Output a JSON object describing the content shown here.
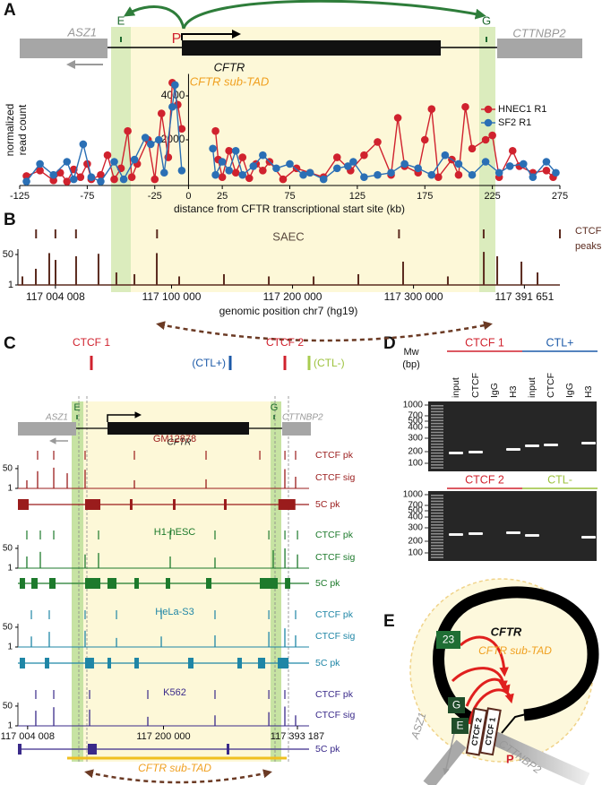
{
  "panel_labels": [
    "A",
    "B",
    "C",
    "D",
    "E"
  ],
  "gene_map": {
    "left_gene": "ASZ1",
    "right_gene": "CTTNBP2",
    "enhancer_e": "E",
    "enhancer_g": "G",
    "promoter": "P",
    "gene": "CFTR",
    "subtad": "CFTR sub-TAD"
  },
  "chart_data": [
    {
      "type": "line",
      "xlabel": "distance from CFTR transcriptional start site (kb)",
      "ylabel": [
        "normalized",
        "read count"
      ],
      "xlim": [
        -125,
        275
      ],
      "xticks": [
        -125,
        -75,
        -25,
        0,
        25,
        75,
        125,
        175,
        225,
        275
      ],
      "ylim": [
        0,
        5000
      ],
      "yticks": [
        2000,
        4000
      ],
      "legend": "upper right",
      "series": [
        {
          "name": "HNEC1 R1",
          "color": "#d0222e",
          "x": [
            -120,
            -110,
            -100,
            -95,
            -90,
            -85,
            -80,
            -75,
            -72,
            -65,
            -60,
            -55,
            -50,
            -45,
            -42,
            -38,
            -30,
            -25,
            -20,
            -15,
            -12,
            -8,
            -5,
            0,
            20,
            22,
            25,
            30,
            35,
            40,
            45,
            50,
            55,
            60,
            70,
            80,
            90,
            100,
            110,
            120,
            130,
            140,
            150,
            155,
            160,
            170,
            175,
            180,
            185,
            195,
            200,
            205,
            210,
            220,
            225,
            230,
            240,
            245,
            255,
            265,
            270
          ],
          "values": [
            350,
            600,
            150,
            500,
            100,
            650,
            300,
            900,
            200,
            400,
            1300,
            200,
            700,
            2400,
            300,
            900,
            2000,
            200,
            3200,
            1200,
            4600,
            3600,
            2500,
            null,
            2400,
            1100,
            300,
            1500,
            500,
            1200,
            250,
            900,
            600,
            1000,
            200,
            700,
            500,
            300,
            1200,
            600,
            1300,
            1900,
            400,
            3000,
            800,
            500,
            2000,
            3400,
            300,
            1100,
            400,
            3500,
            1600,
            2000,
            2200,
            300,
            1500,
            800,
            500,
            600,
            300
          ]
        },
        {
          "name": "SF2 R1",
          "color": "#2a6fb5",
          "x": [
            -120,
            -110,
            -100,
            -90,
            -85,
            -78,
            -72,
            -65,
            -55,
            -48,
            -40,
            -32,
            -28,
            -22,
            -18,
            -12,
            -10,
            -5,
            0,
            18,
            20,
            25,
            30,
            35,
            40,
            48,
            55,
            65,
            75,
            85,
            90,
            100,
            110,
            118,
            122,
            130,
            140,
            150,
            160,
            170,
            180,
            190,
            200,
            210,
            220,
            230,
            238,
            248,
            255,
            265,
            272
          ],
          "values": [
            100,
            900,
            400,
            1000,
            200,
            1800,
            300,
            100,
            1000,
            200,
            1100,
            2100,
            1800,
            2000,
            500,
            3500,
            4500,
            600,
            null,
            1600,
            400,
            1000,
            600,
            1500,
            400,
            800,
            1300,
            700,
            900,
            400,
            500,
            200,
            700,
            800,
            1000,
            300,
            400,
            500,
            900,
            700,
            400,
            1300,
            900,
            400,
            1000,
            500,
            800,
            900,
            300,
            1000,
            500
          ]
        }
      ]
    },
    {
      "type": "bar",
      "label": "SAEC",
      "peaks_label": [
        "CTCF",
        "peaks"
      ],
      "color": "#5a2a1e",
      "xlabel": "genomic position chr7 (hg19)",
      "xlim": [
        116973000,
        117421000
      ],
      "xticks": [
        {
          "value": 117004008,
          "label": "117 004 008"
        },
        {
          "value": 117100000,
          "label": "117 100 000"
        },
        {
          "value": 117200000,
          "label": "117 200 000"
        },
        {
          "value": 117300000,
          "label": "117 300 000"
        },
        {
          "value": 117391651,
          "label": "117 391 651"
        }
      ],
      "ylim": [
        1,
        100
      ],
      "yticks": [
        1,
        50
      ],
      "log_scale": true,
      "peaks": [
        116988000,
        117004000,
        117021000,
        117088000,
        117288000,
        117358000
      ],
      "x": [
        116976700,
        116987800,
        116998900,
        117004100,
        117021100,
        117039600,
        117054400,
        117069300,
        117087800,
        117106300,
        117143300,
        117180400,
        117217400,
        117254400,
        117291400,
        117328400,
        117358100,
        117369200,
        117389200,
        117402500
      ],
      "values": [
        3,
        8,
        60,
        25,
        40,
        55,
        5,
        4,
        60,
        3,
        4,
        3,
        3,
        4,
        20,
        3,
        70,
        40,
        20,
        5
      ]
    }
  ],
  "panel_c": {
    "ctcf1": "CTCF 1",
    "ctcf2": "CTCF 2",
    "ctl_pos": "(CTL+)",
    "ctl_neg": "(CTL-)",
    "track_labels": {
      "pk": "CTCF pk",
      "sig": "CTCF sig",
      "fivec": "5C pk"
    },
    "xlim": [
      116990000,
      117410000
    ],
    "xticks": [
      {
        "value": 117004008,
        "label": "117 004 008"
      },
      {
        "value": 117200000,
        "label": "117 200 000"
      },
      {
        "value": 117393187,
        "label": "117 393 187"
      }
    ],
    "ylim": [
      1,
      100
    ],
    "yticks": [
      1,
      50
    ],
    "log_scale": true,
    "cell_lines": [
      {
        "name": "GM12878",
        "color": "#9a1c1c",
        "pk": [
          117018400,
          117041700,
          117086900,
          117158000,
          117261400,
          117339000,
          117375200,
          117390600
        ],
        "sig_x": [
          117002900,
          117018400,
          117041700,
          117061100,
          117086900,
          117158000,
          117261400,
          117375100,
          117390600
        ],
        "sig": [
          5,
          30,
          60,
          20,
          40,
          5,
          6,
          45,
          10
        ],
        "fivec": [
          [
            116990000,
            117005500
          ],
          [
            117086900,
            117108900
          ],
          [
            117151500,
            117155300
          ],
          [
            117213600,
            117217400
          ],
          [
            117287200,
            117291100
          ],
          [
            117365700,
            117390300
          ]
        ]
      },
      {
        "name": "H1-hESC",
        "color": "#1d7a2c",
        "pk": [
          117002900,
          117022300,
          117041700,
          117106300,
          117209700,
          117274300,
          117352000,
          117375200,
          117393300
        ],
        "sig_x": [
          117002900,
          117022300,
          117086900,
          117106300,
          117209700,
          117274300,
          117358300,
          117375200,
          117393300
        ],
        "sig": [
          10,
          25,
          15,
          20,
          10,
          8,
          35,
          50,
          15
        ],
        "fivec": [
          [
            116992600,
            117000300
          ],
          [
            117009400,
            117018400
          ],
          [
            117035200,
            117044300
          ],
          [
            117086900,
            117108900
          ],
          [
            117119200,
            117132200
          ],
          [
            117158000,
            117164500
          ],
          [
            117203200,
            117209700
          ],
          [
            117261400,
            117269200
          ],
          [
            117338900,
            117364800
          ],
          [
            117375200,
            117382900
          ]
        ]
      },
      {
        "name": "HeLa-S3",
        "color": "#1f86a6",
        "pk": [
          117009400,
          117035200,
          117086900,
          117132200,
          117196800,
          117274300,
          117352000,
          117390600
        ],
        "sig_x": [
          117009400,
          117035200,
          117086900,
          117132200,
          117196800,
          117274300,
          117352000,
          117375100,
          117390600
        ],
        "sig": [
          8,
          20,
          25,
          6,
          8,
          10,
          20,
          40,
          10
        ],
        "fivec": [
          [
            116992600,
            117000300
          ],
          [
            117028800,
            117035200
          ],
          [
            117086900,
            117099800
          ],
          [
            117119200,
            117124400
          ],
          [
            117158000,
            117164500
          ],
          [
            117235500,
            117243300
          ],
          [
            117306600,
            117313100
          ],
          [
            117336300,
            117346700
          ],
          [
            117364800,
            117380300
          ]
        ]
      },
      {
        "name": "K562",
        "color": "#3a2a8a",
        "pk": [
          117015800,
          117041700,
          117093400,
          117177400,
          117274300,
          117352000,
          117375100
        ],
        "sig_x": [
          117015800,
          117041700,
          117093400,
          117177400,
          117274300,
          117352000,
          117375100,
          117390600
        ],
        "sig": [
          20,
          40,
          25,
          6,
          8,
          15,
          45,
          8
        ],
        "fivec": [
          [
            116990000,
            116995200
          ],
          [
            117090800,
            117103700
          ],
          [
            117291100,
            117295000
          ]
        ]
      }
    ]
  },
  "panel_d": {
    "mw_label": [
      "Mw",
      "(bp)"
    ],
    "ladder": [
      1000,
      700,
      500,
      400,
      300,
      200,
      100
    ],
    "lanes": [
      "input",
      "CTCF",
      "IgG",
      "H3"
    ],
    "gels": [
      {
        "groups": [
          {
            "name": "CTCF 1",
            "color": "#d0222e"
          },
          {
            "name": "CTL+",
            "color": "#1c5aa8"
          }
        ]
      },
      {
        "groups": [
          {
            "name": "CTCF 2",
            "color": "#d0222e"
          },
          {
            "name": "CTL-",
            "color": "#9cc23c"
          }
        ]
      }
    ]
  },
  "panel_e": {
    "element_23": "23",
    "ctcf1": "CTCF 1",
    "ctcf2": "CTCF 2"
  }
}
